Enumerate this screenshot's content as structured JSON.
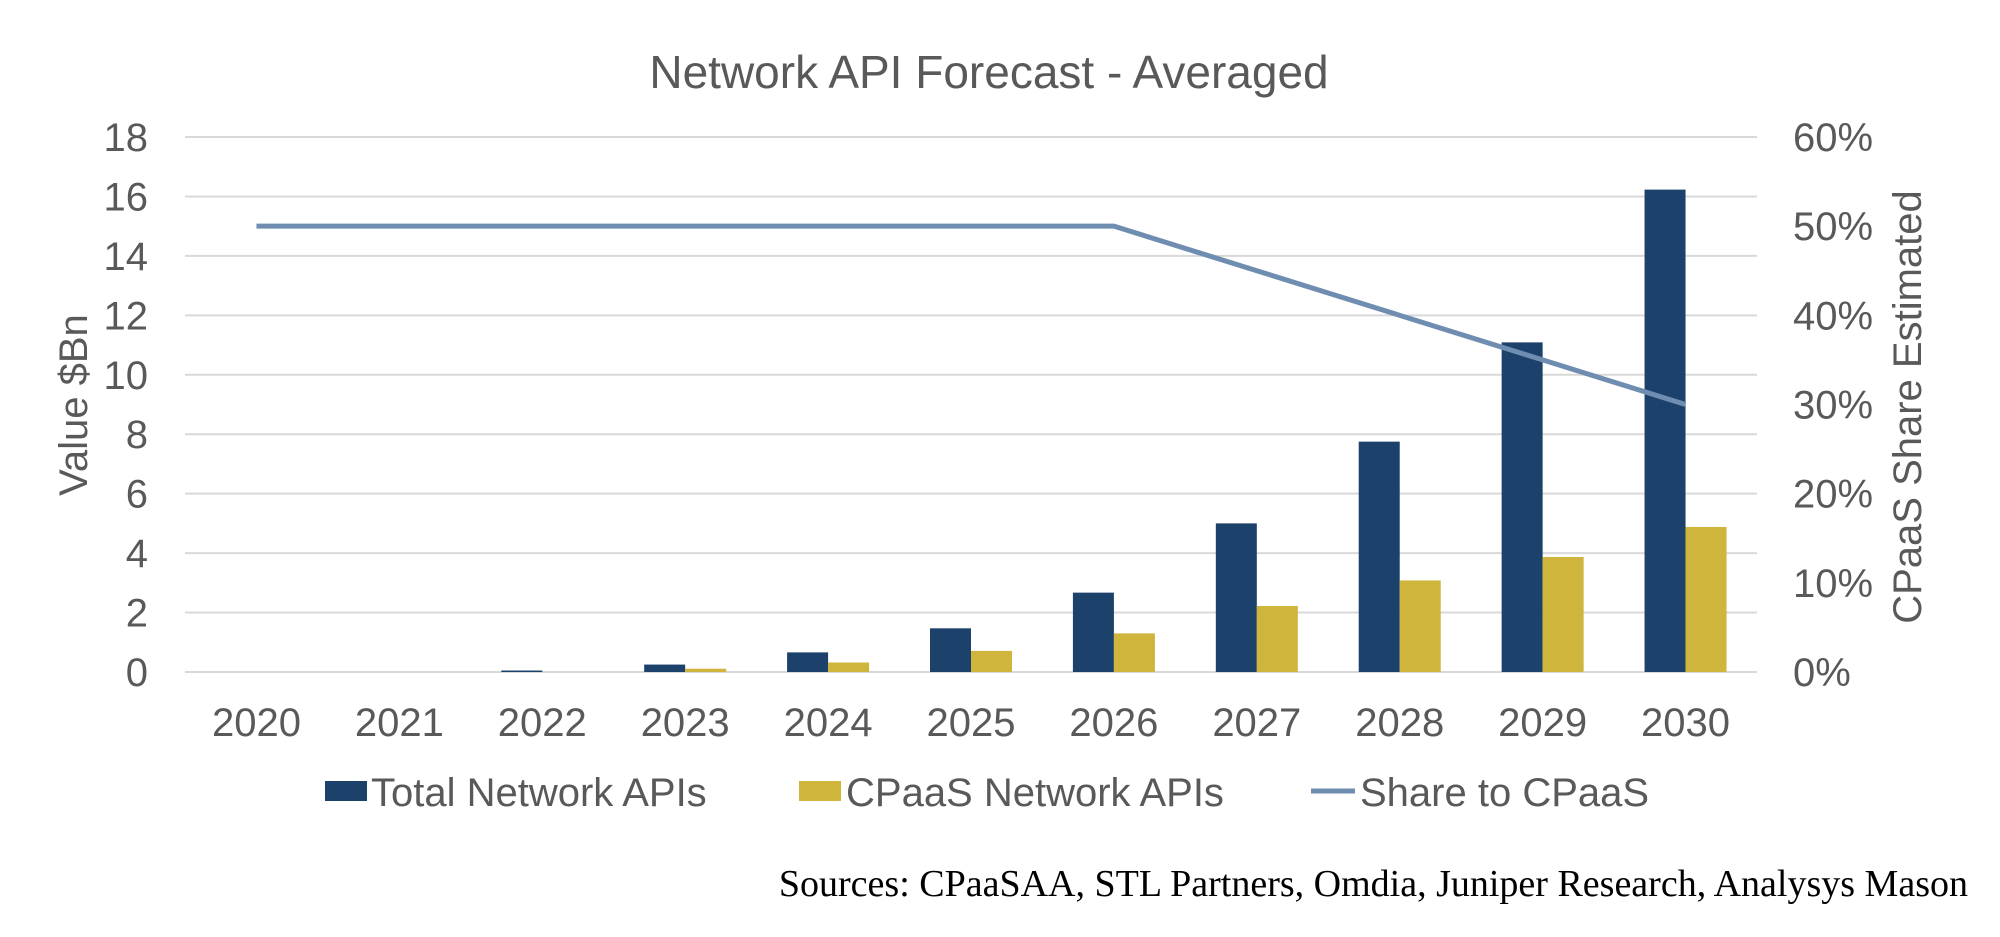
{
  "chart_data": {
    "type": "bar",
    "title": "Network API Forecast - Averaged",
    "categories": [
      "2020",
      "2021",
      "2022",
      "2023",
      "2024",
      "2025",
      "2026",
      "2027",
      "2028",
      "2029",
      "2030"
    ],
    "series": [
      {
        "name": "Total Network APIs",
        "type": "bar",
        "axis": "left",
        "color": "#1C416B",
        "values": [
          0,
          0,
          0.05,
          0.25,
          0.66,
          1.47,
          2.67,
          5.0,
          7.75,
          11.09,
          16.23
        ]
      },
      {
        "name": "CPaaS Network APIs",
        "type": "bar",
        "axis": "left",
        "color": "#CFB53B",
        "values": [
          0,
          0,
          0.0,
          0.11,
          0.32,
          0.71,
          1.3,
          2.22,
          3.08,
          3.87,
          4.88
        ]
      },
      {
        "name": "Share to CPaaS",
        "type": "line",
        "axis": "right",
        "color": "#6E8DB0",
        "values": [
          0.5,
          0.5,
          0.5,
          0.5,
          0.5,
          0.5,
          0.5,
          0.45,
          0.4,
          0.35,
          0.3
        ]
      }
    ],
    "xlabel": "",
    "ylabel": "Value $Bn",
    "ylim": [
      0,
      18
    ],
    "yticks": [
      "0",
      "2",
      "4",
      "6",
      "8",
      "10",
      "12",
      "14",
      "16",
      "18"
    ],
    "y2label": "CPaaS Share Estimated",
    "y2lim": [
      0,
      0.6
    ],
    "y2ticks": [
      "0%",
      "10%",
      "20%",
      "30%",
      "40%",
      "50%",
      "60%"
    ],
    "grid": true,
    "legend_position": "bottom",
    "legend": [
      "Total Network APIs",
      "CPaaS Network APIs",
      "Share to CPaaS"
    ]
  },
  "footer": {
    "sources": "Sources: CPaaSAA, STL Partners, Omdia, Juniper Research, Analysys Mason"
  }
}
